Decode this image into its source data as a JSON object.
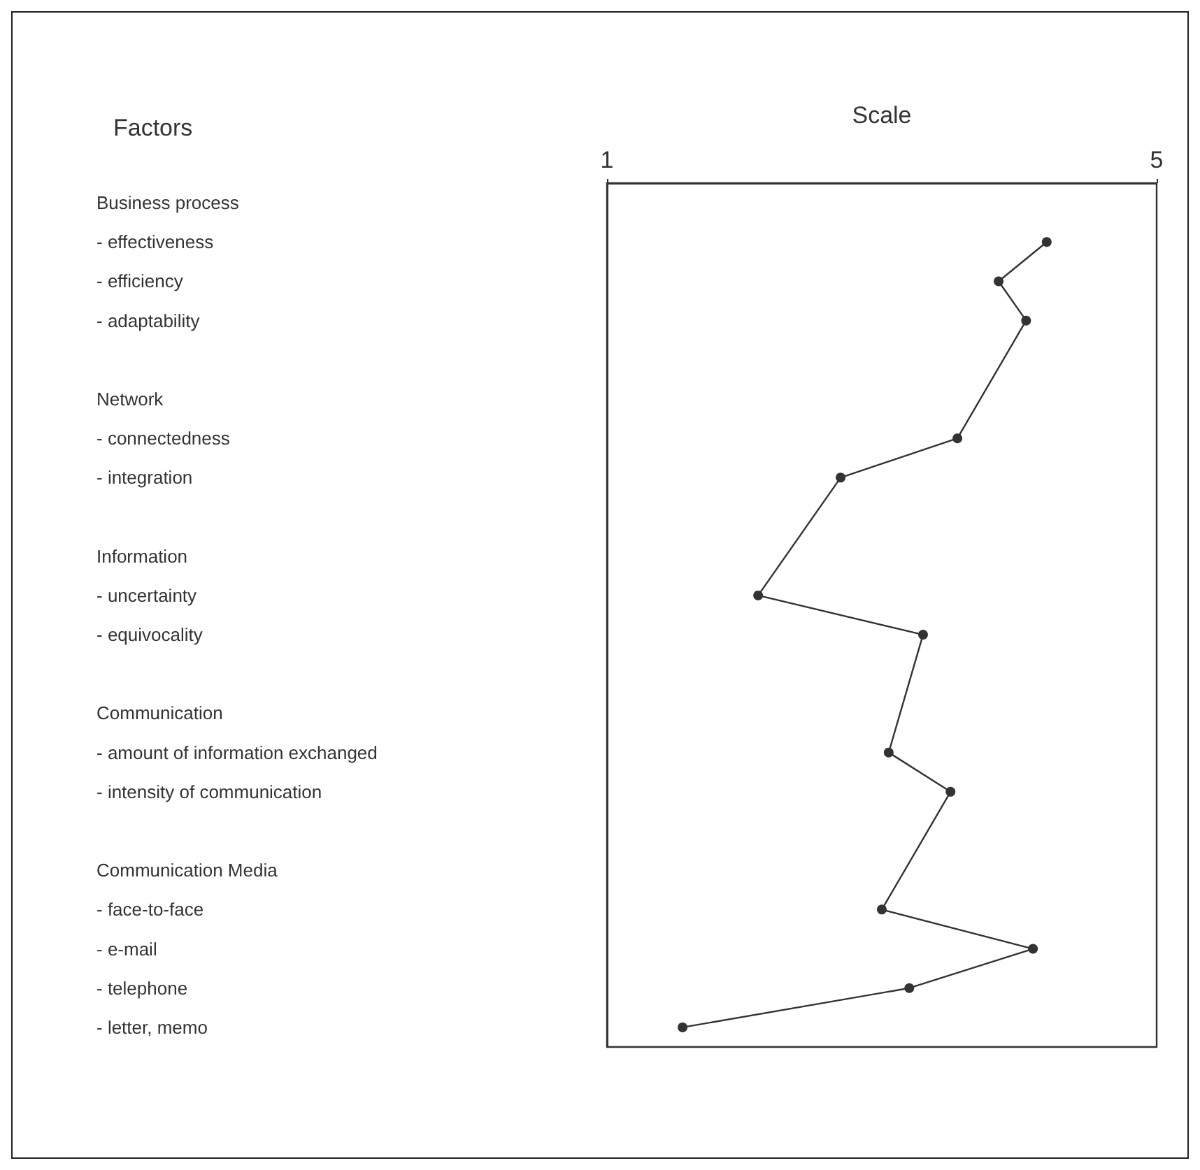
{
  "chart_data": {
    "type": "line",
    "orientation": "horizontal",
    "x2label": "Scale",
    "ylabel": "Factors",
    "categories": [
      "Business process",
      "- effectiveness",
      "- efficiency",
      "- adaptability",
      null,
      "Network",
      "- connectedness",
      "- integration",
      null,
      "Information",
      "- uncertainty",
      "- equivocality",
      null,
      "Communication",
      "- amount of information exchanged",
      "- intensity of communication",
      null,
      "Communication Media",
      "- face-to-face",
      "- e-mail",
      "- telephone",
      "- letter, memo"
    ],
    "series": [
      {
        "color": "#333333",
        "axis": "x2",
        "values": [
          null,
          4.2,
          3.85,
          4.05,
          null,
          null,
          3.55,
          2.7,
          null,
          null,
          2.1,
          3.3,
          null,
          null,
          3.05,
          3.5,
          null,
          null,
          3.0,
          4.1,
          3.2,
          1.55
        ]
      }
    ],
    "marker": "circle",
    "line_style": "solid",
    "x2lim": [
      1,
      5
    ],
    "x2ticks": [
      1,
      5
    ],
    "grid": false
  }
}
